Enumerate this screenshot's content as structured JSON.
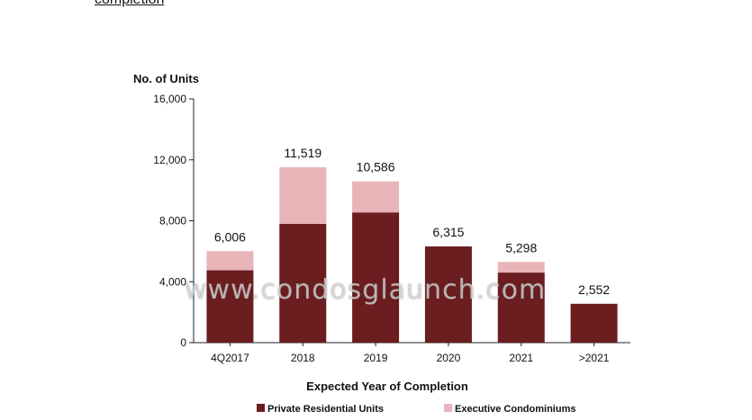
{
  "page": {
    "title": "completion"
  },
  "watermark": {
    "text": "www.condosglaunch.com"
  },
  "colors": {
    "private": "#6b1d1f",
    "ec": "#e8b4b8",
    "axis": "#222222"
  },
  "chart_data": {
    "type": "bar",
    "stacked": true,
    "ylabel": "No. of Units",
    "xlabel": "Expected Year of Completion",
    "ylim": [
      0,
      16000
    ],
    "yticks": [
      0,
      4000,
      8000,
      12000,
      16000
    ],
    "ytick_labels": [
      "0",
      "4,000",
      "8,000",
      "12,000",
      "16,000"
    ],
    "grid": false,
    "legend_position": "bottom",
    "categories": [
      "4Q2017",
      "2018",
      "2019",
      "2020",
      "2021",
      ">2021"
    ],
    "series": [
      {
        "name": "Private Residential Units",
        "color": "#6b1d1f",
        "values": [
          4750,
          7800,
          8550,
          6315,
          4600,
          2552
        ]
      },
      {
        "name": "Executive Condominiums",
        "color": "#e8b4b8",
        "values": [
          1256,
          3719,
          2036,
          0,
          698,
          0
        ]
      }
    ],
    "totals": [
      6006,
      11519,
      10586,
      6315,
      5298,
      2552
    ],
    "total_labels": [
      "6,006",
      "11,519",
      "10,586",
      "6,315",
      "5,298",
      "2,552"
    ]
  }
}
